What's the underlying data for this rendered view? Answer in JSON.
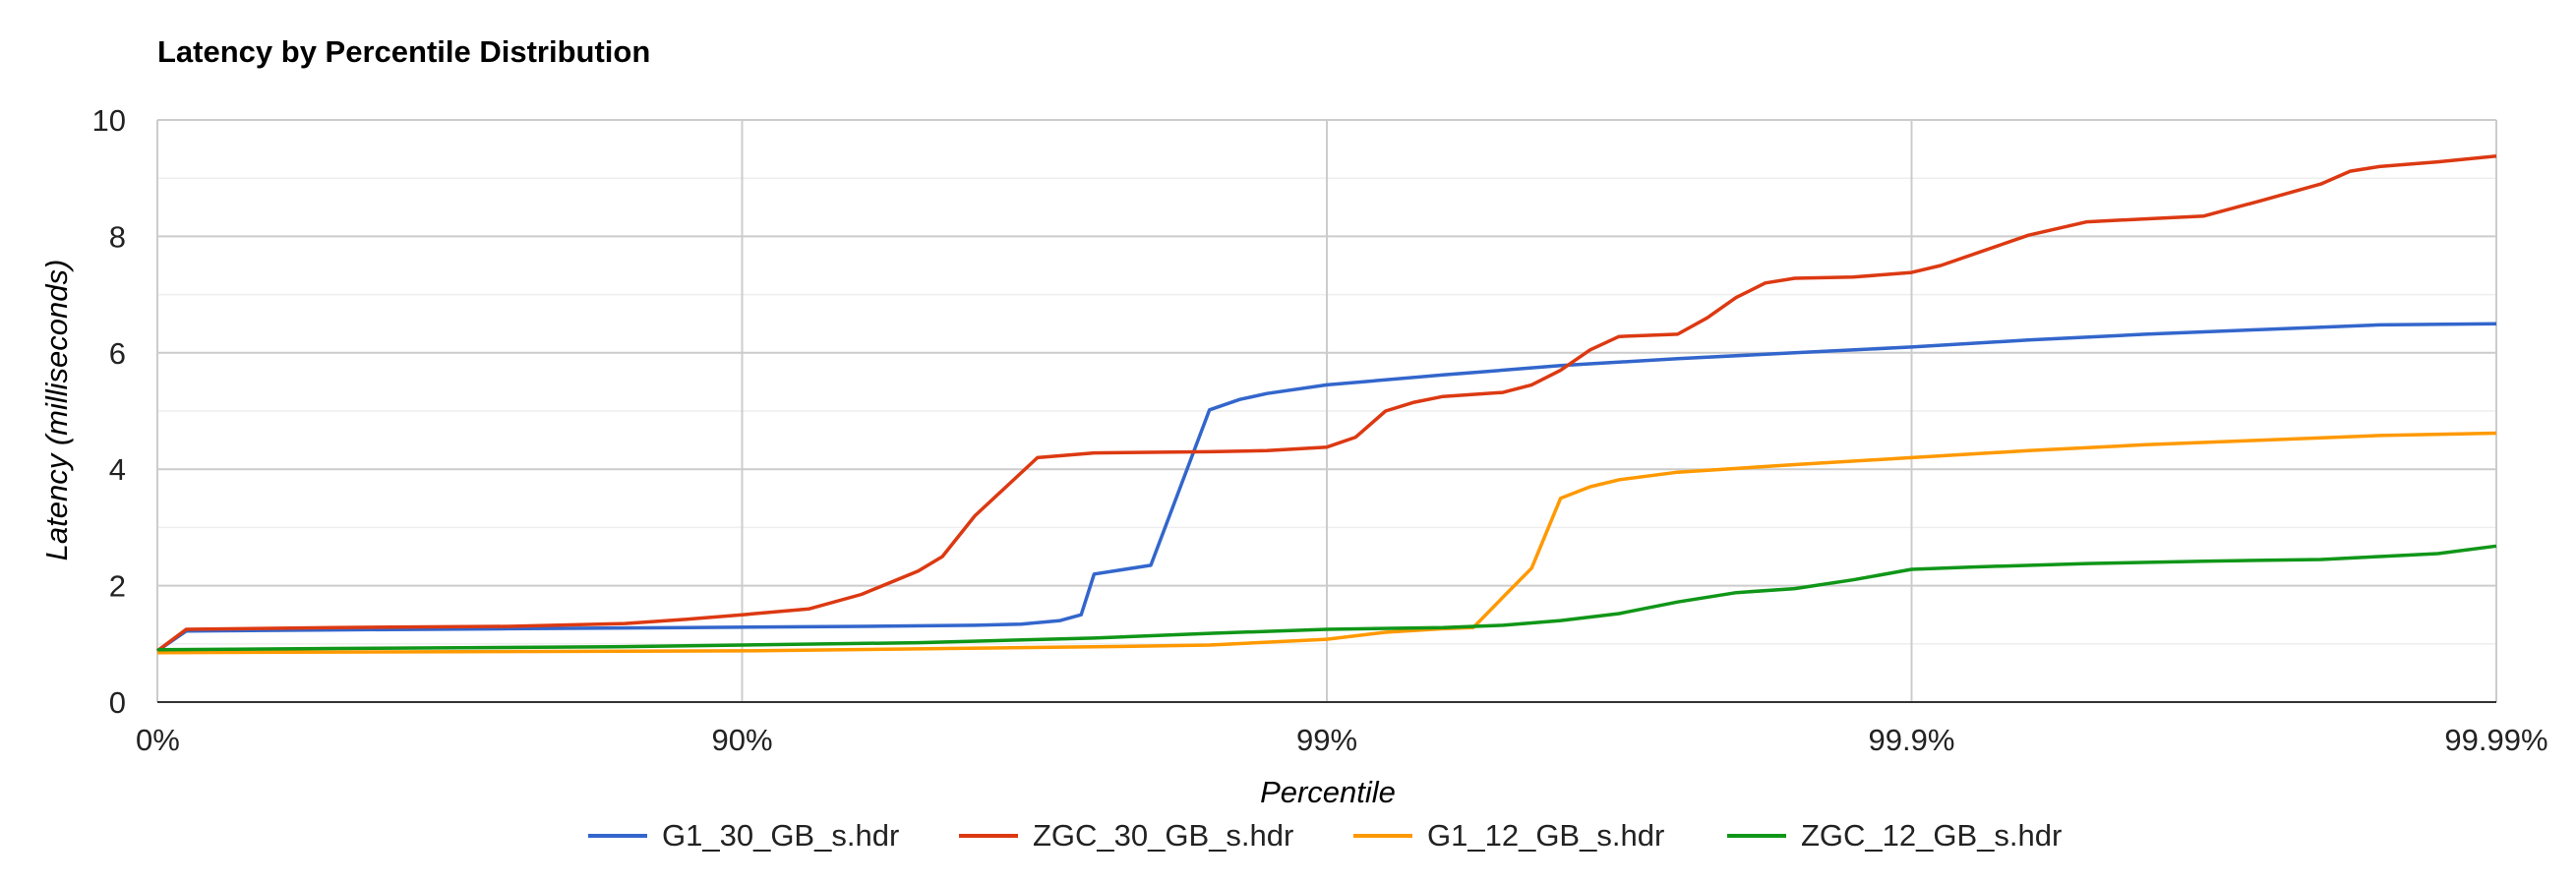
{
  "chart_data": {
    "type": "line",
    "title": "Latency by Percentile Distribution",
    "xlabel": "Percentile",
    "ylabel": "Latency (milliseconds)",
    "x_scale": "log-reciprocal (1/(1-p))",
    "x_ticks": [
      "0%",
      "90%",
      "99%",
      "99.9%",
      "99.99%"
    ],
    "x_tick_values": [
      1,
      10,
      100,
      1000,
      10000
    ],
    "ylim": [
      0,
      10
    ],
    "y_ticks": [
      0,
      2,
      4,
      6,
      8,
      10
    ],
    "grid": true,
    "legend_position": "bottom",
    "series": [
      {
        "name": "G1_30_GB_s.hdr",
        "color": "#3366cc",
        "points": [
          [
            1,
            0.88
          ],
          [
            1.12,
            1.22
          ],
          [
            2,
            1.24
          ],
          [
            4,
            1.26
          ],
          [
            8,
            1.28
          ],
          [
            16,
            1.3
          ],
          [
            25,
            1.32
          ],
          [
            30,
            1.34
          ],
          [
            35,
            1.4
          ],
          [
            38,
            1.5
          ],
          [
            40,
            2.2
          ],
          [
            50,
            2.35
          ],
          [
            63,
            5.02
          ],
          [
            71,
            5.2
          ],
          [
            79,
            5.3
          ],
          [
            100,
            5.45
          ],
          [
            158,
            5.62
          ],
          [
            251,
            5.78
          ],
          [
            398,
            5.9
          ],
          [
            631,
            6.0
          ],
          [
            1000,
            6.1
          ],
          [
            1585,
            6.22
          ],
          [
            2512,
            6.32
          ],
          [
            3981,
            6.4
          ],
          [
            6310,
            6.48
          ],
          [
            10000,
            6.5
          ]
        ]
      },
      {
        "name": "ZGC_30_GB_s.hdr",
        "color": "#dc3912",
        "points": [
          [
            1,
            0.88
          ],
          [
            1.12,
            1.25
          ],
          [
            2,
            1.28
          ],
          [
            4,
            1.3
          ],
          [
            6.3,
            1.35
          ],
          [
            8,
            1.42
          ],
          [
            10,
            1.5
          ],
          [
            13,
            1.6
          ],
          [
            16,
            1.85
          ],
          [
            20,
            2.25
          ],
          [
            22,
            2.5
          ],
          [
            25,
            3.2
          ],
          [
            32,
            4.2
          ],
          [
            40,
            4.28
          ],
          [
            63,
            4.3
          ],
          [
            79,
            4.32
          ],
          [
            100,
            4.38
          ],
          [
            112,
            4.55
          ],
          [
            126,
            5.0
          ],
          [
            141,
            5.15
          ],
          [
            158,
            5.25
          ],
          [
            200,
            5.32
          ],
          [
            224,
            5.45
          ],
          [
            251,
            5.7
          ],
          [
            282,
            6.05
          ],
          [
            316,
            6.28
          ],
          [
            398,
            6.32
          ],
          [
            447,
            6.6
          ],
          [
            501,
            6.95
          ],
          [
            562,
            7.2
          ],
          [
            631,
            7.28
          ],
          [
            794,
            7.3
          ],
          [
            1000,
            7.38
          ],
          [
            1122,
            7.5
          ],
          [
            1585,
            8.02
          ],
          [
            1995,
            8.25
          ],
          [
            2512,
            8.3
          ],
          [
            3162,
            8.35
          ],
          [
            3981,
            8.62
          ],
          [
            5012,
            8.9
          ],
          [
            5623,
            9.12
          ],
          [
            6310,
            9.2
          ],
          [
            7943,
            9.28
          ],
          [
            10000,
            9.38
          ]
        ]
      },
      {
        "name": "G1_12_GB_s.hdr",
        "color": "#ff9900",
        "points": [
          [
            1,
            0.85
          ],
          [
            10,
            0.88
          ],
          [
            40,
            0.95
          ],
          [
            63,
            0.98
          ],
          [
            100,
            1.08
          ],
          [
            126,
            1.2
          ],
          [
            158,
            1.26
          ],
          [
            178,
            1.28
          ],
          [
            200,
            1.8
          ],
          [
            224,
            2.3
          ],
          [
            251,
            3.5
          ],
          [
            282,
            3.7
          ],
          [
            316,
            3.82
          ],
          [
            398,
            3.95
          ],
          [
            631,
            4.08
          ],
          [
            1000,
            4.2
          ],
          [
            1585,
            4.32
          ],
          [
            2512,
            4.42
          ],
          [
            3981,
            4.5
          ],
          [
            6310,
            4.58
          ],
          [
            10000,
            4.62
          ]
        ]
      },
      {
        "name": "ZGC_12_GB_s.hdr",
        "color": "#109618",
        "points": [
          [
            1,
            0.9
          ],
          [
            2,
            0.92
          ],
          [
            6,
            0.95
          ],
          [
            10,
            0.98
          ],
          [
            20,
            1.02
          ],
          [
            40,
            1.1
          ],
          [
            63,
            1.18
          ],
          [
            100,
            1.25
          ],
          [
            158,
            1.28
          ],
          [
            200,
            1.32
          ],
          [
            251,
            1.4
          ],
          [
            316,
            1.52
          ],
          [
            398,
            1.72
          ],
          [
            501,
            1.88
          ],
          [
            631,
            1.95
          ],
          [
            794,
            2.1
          ],
          [
            1000,
            2.28
          ],
          [
            1259,
            2.32
          ],
          [
            1995,
            2.38
          ],
          [
            3162,
            2.42
          ],
          [
            5012,
            2.45
          ],
          [
            6310,
            2.5
          ],
          [
            7943,
            2.55
          ],
          [
            10000,
            2.68
          ]
        ]
      }
    ]
  }
}
